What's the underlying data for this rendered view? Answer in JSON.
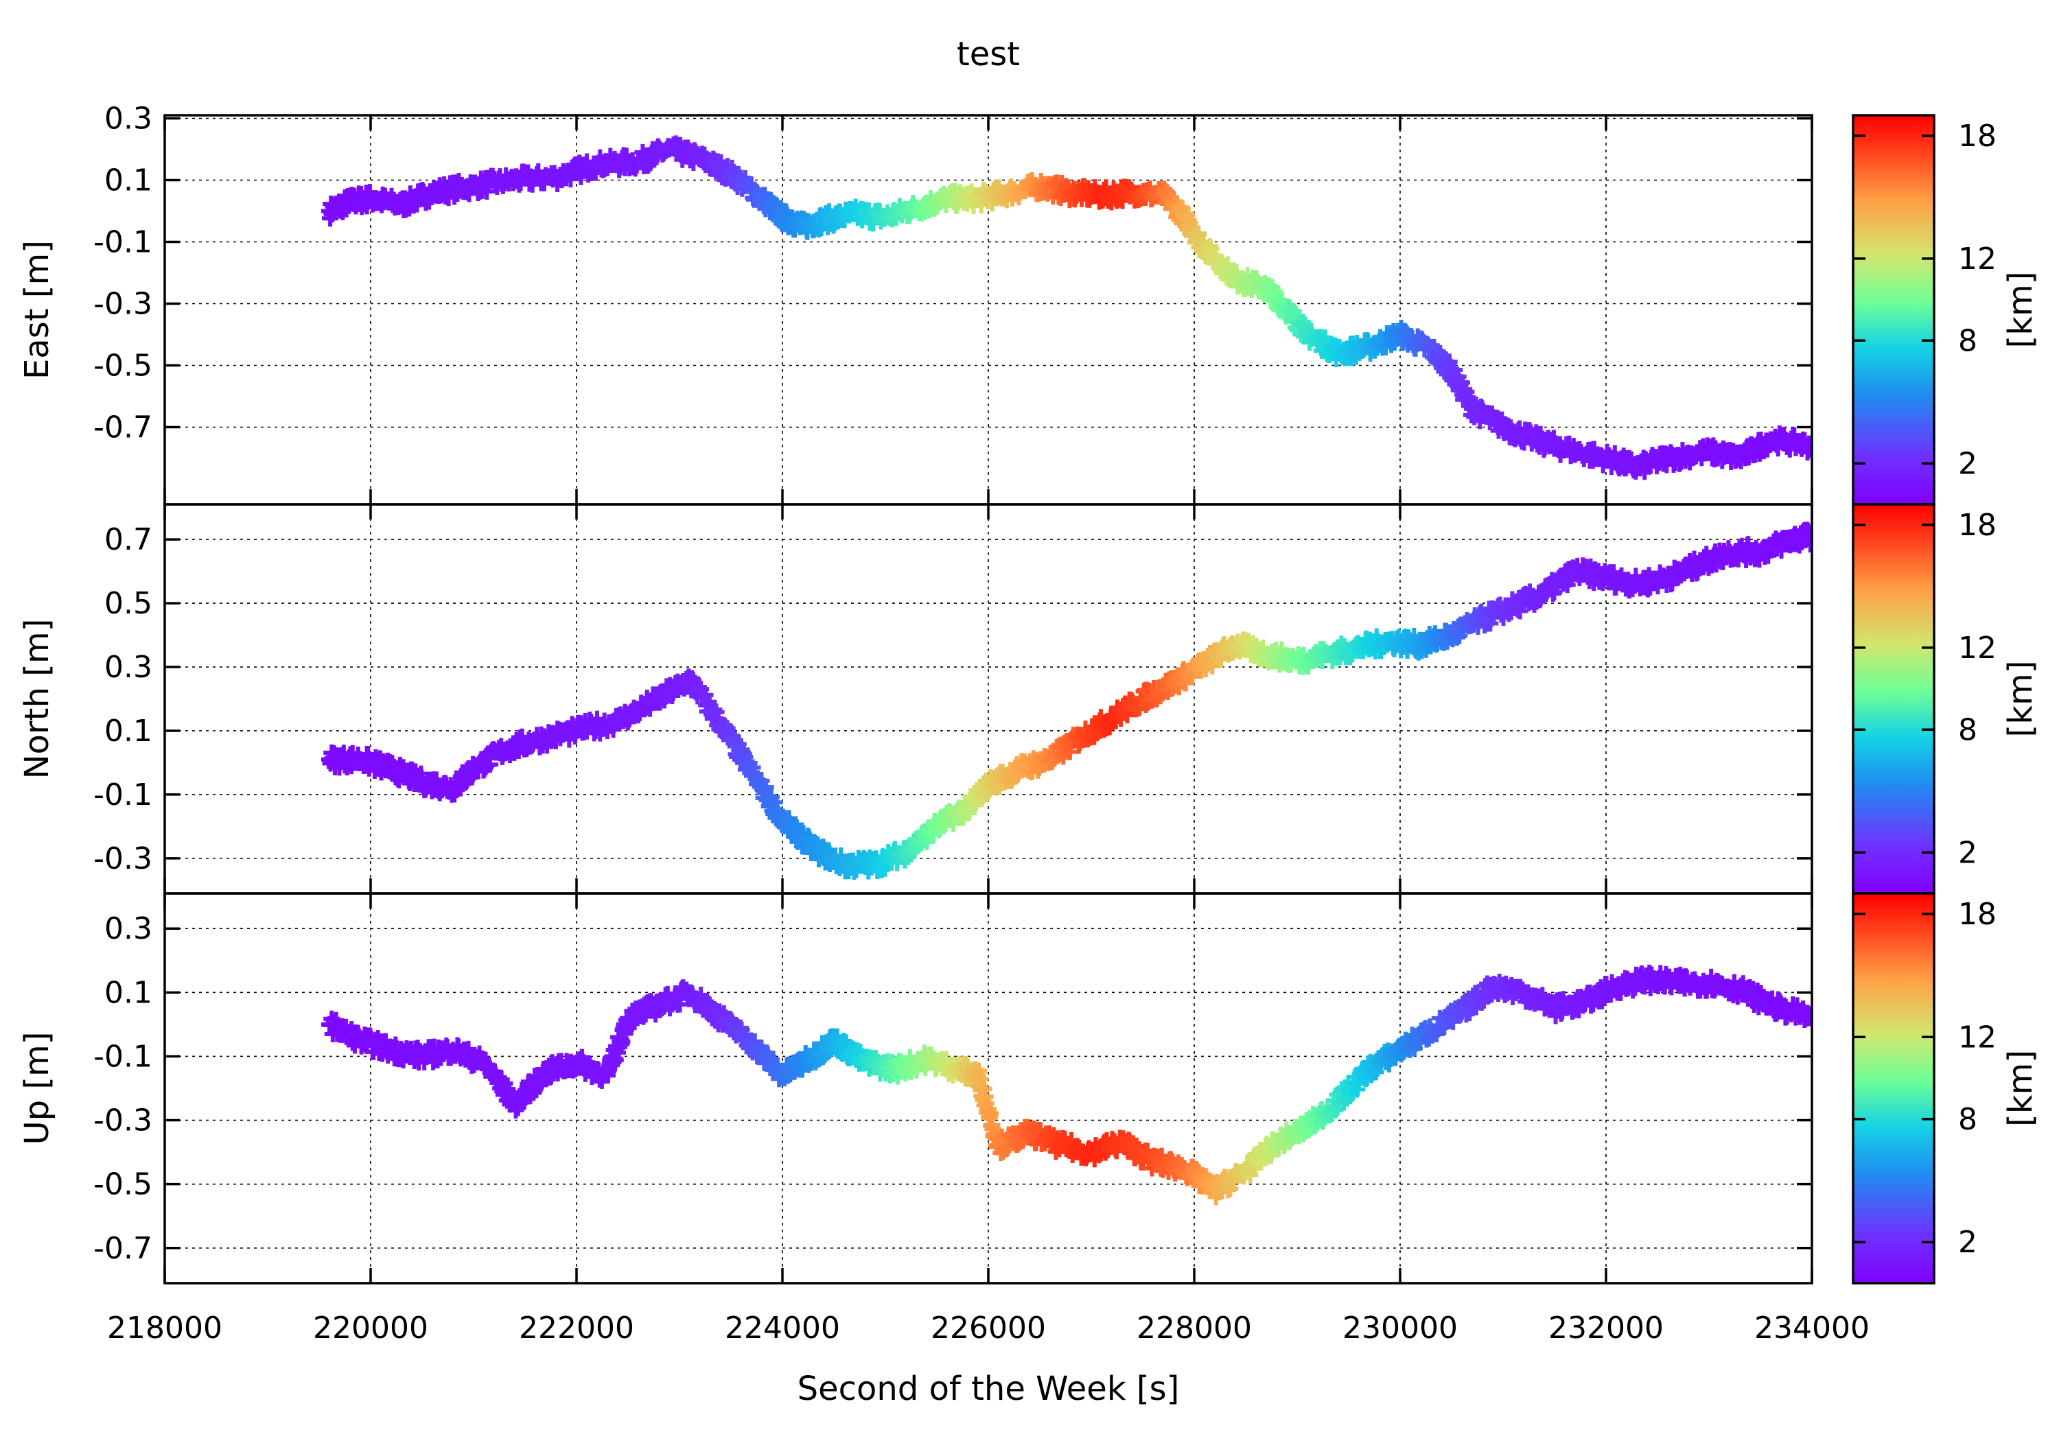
{
  "chart_data": {
    "type": "scatter",
    "title": "test",
    "xlabel": "Second of the Week [s]",
    "xlim": [
      218000,
      234000
    ],
    "xticks": [
      218000,
      220000,
      222000,
      224000,
      226000,
      228000,
      230000,
      232000,
      234000
    ],
    "grid": true,
    "marker": "plus",
    "colorbar": {
      "label": "[km]",
      "range": [
        0,
        19
      ],
      "ticks": [
        2,
        8,
        12,
        18
      ],
      "colormap": "rainbow"
    },
    "panels": [
      {
        "ylabel": "East [m]",
        "ylim": [
          -0.95,
          0.31
        ],
        "yticks": [
          0.3,
          0.1,
          -0.1,
          -0.3,
          -0.5,
          -0.7
        ],
        "points": [
          [
            219600,
            0.0
          ],
          [
            219800,
            0.03
          ],
          [
            220000,
            0.04
          ],
          [
            220300,
            0.02
          ],
          [
            220600,
            0.06
          ],
          [
            221000,
            0.08
          ],
          [
            221400,
            0.1
          ],
          [
            221800,
            0.11
          ],
          [
            222200,
            0.15
          ],
          [
            222600,
            0.16
          ],
          [
            222900,
            0.2
          ],
          [
            223200,
            0.17
          ],
          [
            223500,
            0.12
          ],
          [
            223800,
            0.04
          ],
          [
            224000,
            -0.02
          ],
          [
            224200,
            -0.05
          ],
          [
            224400,
            -0.03
          ],
          [
            224700,
            -0.01
          ],
          [
            225000,
            -0.02
          ],
          [
            225300,
            0.01
          ],
          [
            225600,
            0.04
          ],
          [
            225900,
            0.04
          ],
          [
            226200,
            0.06
          ],
          [
            226500,
            0.08
          ],
          [
            226800,
            0.06
          ],
          [
            227100,
            0.05
          ],
          [
            227400,
            0.06
          ],
          [
            227700,
            0.05
          ],
          [
            227900,
            -0.02
          ],
          [
            228100,
            -0.12
          ],
          [
            228400,
            -0.22
          ],
          [
            228700,
            -0.25
          ],
          [
            228900,
            -0.32
          ],
          [
            229100,
            -0.4
          ],
          [
            229400,
            -0.46
          ],
          [
            229700,
            -0.44
          ],
          [
            230000,
            -0.4
          ],
          [
            230300,
            -0.45
          ],
          [
            230500,
            -0.52
          ],
          [
            230700,
            -0.64
          ],
          [
            231000,
            -0.7
          ],
          [
            231300,
            -0.74
          ],
          [
            231600,
            -0.77
          ],
          [
            232000,
            -0.8
          ],
          [
            232300,
            -0.83
          ],
          [
            232600,
            -0.8
          ],
          [
            233000,
            -0.78
          ],
          [
            233300,
            -0.8
          ],
          [
            233600,
            -0.74
          ],
          [
            234000,
            -0.76
          ]
        ],
        "distance_km": [
          0.4,
          0.5,
          0.6,
          0.6,
          0.7,
          0.8,
          0.8,
          0.9,
          1.0,
          1.1,
          1.2,
          1.5,
          2.5,
          4.0,
          5.0,
          5.6,
          6.5,
          7.5,
          8.5,
          9.5,
          11,
          12.5,
          14,
          15.5,
          17,
          18,
          17.5,
          16,
          14.5,
          13,
          11.5,
          10.5,
          9.5,
          8.5,
          7.5,
          6.5,
          5,
          3.5,
          2.5,
          1.8,
          1.4,
          1.2,
          1.0,
          0.9,
          0.8,
          0.7,
          0.6,
          0.6,
          0.5,
          0.5
        ]
      },
      {
        "ylabel": "North [m]",
        "ylim": [
          -0.41,
          0.81
        ],
        "yticks": [
          0.7,
          0.5,
          0.3,
          0.1,
          -0.1,
          -0.3
        ],
        "points": [
          [
            219600,
            0.01
          ],
          [
            219900,
            0.01
          ],
          [
            220200,
            -0.02
          ],
          [
            220500,
            -0.06
          ],
          [
            220800,
            -0.08
          ],
          [
            221000,
            -0.02
          ],
          [
            221300,
            0.04
          ],
          [
            221600,
            0.07
          ],
          [
            222000,
            0.1
          ],
          [
            222400,
            0.13
          ],
          [
            222800,
            0.2
          ],
          [
            223100,
            0.26
          ],
          [
            223400,
            0.12
          ],
          [
            223700,
            -0.03
          ],
          [
            224000,
            -0.18
          ],
          [
            224300,
            -0.27
          ],
          [
            224600,
            -0.32
          ],
          [
            224900,
            -0.32
          ],
          [
            225200,
            -0.28
          ],
          [
            225500,
            -0.2
          ],
          [
            225800,
            -0.14
          ],
          [
            226000,
            -0.07
          ],
          [
            226300,
            -0.02
          ],
          [
            226600,
            0.01
          ],
          [
            226900,
            0.08
          ],
          [
            227200,
            0.14
          ],
          [
            227500,
            0.2
          ],
          [
            227800,
            0.25
          ],
          [
            228100,
            0.31
          ],
          [
            228400,
            0.37
          ],
          [
            228700,
            0.34
          ],
          [
            229000,
            0.32
          ],
          [
            229300,
            0.34
          ],
          [
            229600,
            0.36
          ],
          [
            229900,
            0.38
          ],
          [
            230200,
            0.37
          ],
          [
            230500,
            0.4
          ],
          [
            230800,
            0.45
          ],
          [
            231100,
            0.49
          ],
          [
            231400,
            0.53
          ],
          [
            231700,
            0.6
          ],
          [
            232000,
            0.58
          ],
          [
            232300,
            0.56
          ],
          [
            232600,
            0.58
          ],
          [
            232900,
            0.62
          ],
          [
            233200,
            0.66
          ],
          [
            233500,
            0.66
          ],
          [
            233800,
            0.7
          ],
          [
            234000,
            0.71
          ]
        ],
        "distance_km": [
          0.4,
          0.5,
          0.5,
          0.6,
          0.6,
          0.7,
          0.7,
          0.8,
          0.9,
          1.0,
          1.1,
          1.4,
          2.2,
          3.6,
          4.8,
          5.6,
          6.4,
          7.2,
          8.5,
          10,
          11.5,
          13,
          14.5,
          15.5,
          17,
          18,
          17,
          16,
          14.5,
          13,
          11.5,
          10,
          9,
          8,
          7,
          6,
          4.5,
          3,
          2,
          1.5,
          1.2,
          1.0,
          0.9,
          0.8,
          0.7,
          0.6,
          0.6,
          0.5,
          0.5
        ]
      },
      {
        "ylabel": "Up [m]",
        "ylim": [
          -0.81,
          0.41
        ],
        "yticks": [
          0.3,
          0.1,
          -0.1,
          -0.3,
          -0.5,
          -0.7
        ],
        "points": [
          [
            219600,
            0.0
          ],
          [
            219900,
            -0.05
          ],
          [
            220200,
            -0.08
          ],
          [
            220500,
            -0.1
          ],
          [
            220800,
            -0.08
          ],
          [
            221100,
            -0.12
          ],
          [
            221400,
            -0.25
          ],
          [
            221700,
            -0.15
          ],
          [
            222000,
            -0.12
          ],
          [
            222300,
            -0.16
          ],
          [
            222500,
            0.02
          ],
          [
            222800,
            0.06
          ],
          [
            223100,
            0.1
          ],
          [
            223400,
            0.02
          ],
          [
            223700,
            -0.06
          ],
          [
            224000,
            -0.16
          ],
          [
            224300,
            -0.1
          ],
          [
            224500,
            -0.05
          ],
          [
            224800,
            -0.12
          ],
          [
            225100,
            -0.14
          ],
          [
            225400,
            -0.11
          ],
          [
            225700,
            -0.14
          ],
          [
            225900,
            -0.16
          ],
          [
            226100,
            -0.38
          ],
          [
            226400,
            -0.34
          ],
          [
            226700,
            -0.38
          ],
          [
            227000,
            -0.4
          ],
          [
            227300,
            -0.37
          ],
          [
            227600,
            -0.43
          ],
          [
            227900,
            -0.45
          ],
          [
            228200,
            -0.52
          ],
          [
            228500,
            -0.46
          ],
          [
            228800,
            -0.37
          ],
          [
            229100,
            -0.32
          ],
          [
            229400,
            -0.24
          ],
          [
            229700,
            -0.14
          ],
          [
            230000,
            -0.08
          ],
          [
            230300,
            -0.02
          ],
          [
            230600,
            0.04
          ],
          [
            230900,
            0.12
          ],
          [
            231200,
            0.1
          ],
          [
            231500,
            0.05
          ],
          [
            231800,
            0.07
          ],
          [
            232100,
            0.12
          ],
          [
            232400,
            0.14
          ],
          [
            232700,
            0.13
          ],
          [
            233000,
            0.13
          ],
          [
            233300,
            0.11
          ],
          [
            233600,
            0.06
          ],
          [
            234000,
            0.02
          ]
        ],
        "distance_km": [
          0.4,
          0.5,
          0.5,
          0.6,
          0.6,
          0.7,
          0.7,
          0.8,
          0.8,
          0.9,
          1.0,
          1.1,
          1.3,
          2.0,
          3.2,
          4.5,
          5.6,
          6.5,
          8,
          9.5,
          11,
          12.5,
          14,
          15.5,
          16.5,
          17.5,
          18,
          17.5,
          17,
          16,
          14.5,
          13,
          11.5,
          10,
          8.5,
          7,
          5.5,
          4,
          3,
          2.2,
          1.6,
          1.3,
          1.1,
          0.9,
          0.8,
          0.7,
          0.6,
          0.6,
          0.5,
          0.5
        ]
      }
    ]
  }
}
